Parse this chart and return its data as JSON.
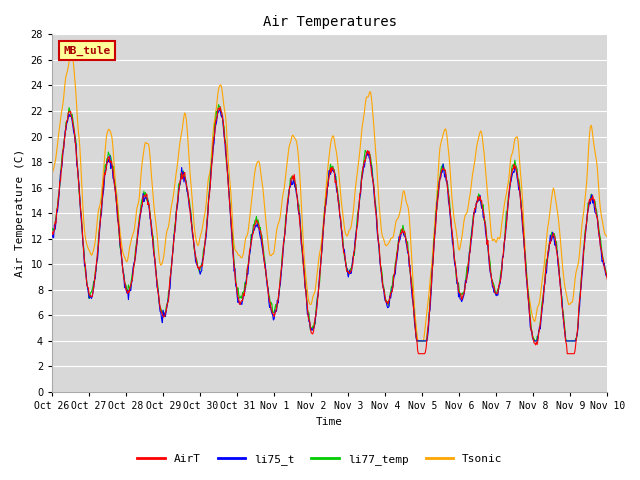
{
  "title": "Air Temperatures",
  "ylabel": "Air Temperature (C)",
  "xlabel": "Time",
  "ylim": [
    0,
    28
  ],
  "yticks": [
    0,
    2,
    4,
    6,
    8,
    10,
    12,
    14,
    16,
    18,
    20,
    22,
    24,
    26,
    28
  ],
  "annotation": "MB_tule",
  "colors": {
    "AirT": "#ff0000",
    "li75_t": "#0000ff",
    "li77_temp": "#00cc00",
    "Tsonic": "#ffa500"
  },
  "bg_color": "#d8d8d8",
  "grid_color": "#ffffff",
  "legend_box_bg": "#ffff99",
  "legend_box_edge": "#cc0000",
  "tick_labels": [
    "Oct 26",
    "Oct 27",
    "Oct 28",
    "Oct 29",
    "Oct 30",
    "Oct 31",
    "Nov 1",
    "Nov 2",
    "Nov 3",
    "Nov 4",
    "Nov 5",
    "Nov 6",
    "Nov 7",
    "Nov 8",
    "Nov 9",
    "Nov 10"
  ]
}
